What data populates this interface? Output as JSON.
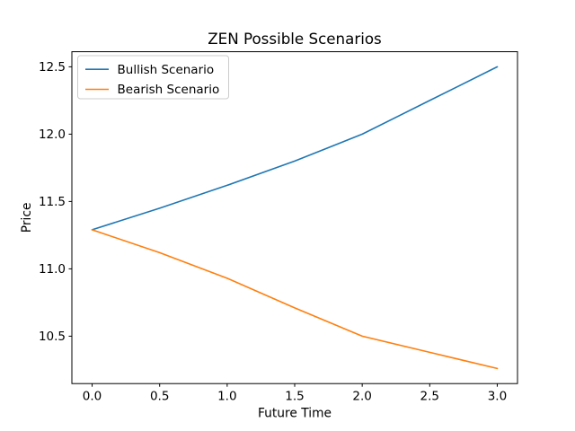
{
  "figure": {
    "background": "#ffffff",
    "text_color": "#000000",
    "spine_color": "#000000",
    "legend_border_color": "#cccccc"
  },
  "chart_data": {
    "type": "line",
    "title": "ZEN Possible Scenarios",
    "xlabel": "Future Time",
    "ylabel": "Price",
    "x": [
      0,
      0.5,
      1,
      1.5,
      2,
      2.5,
      3
    ],
    "series": [
      {
        "name": "Bullish Scenario",
        "color": "#1f77b4",
        "values": [
          11.29,
          11.45,
          11.62,
          11.8,
          12.0,
          12.25,
          12.5
        ]
      },
      {
        "name": "Bearish Scenario",
        "color": "#ff7f0e",
        "values": [
          11.29,
          11.12,
          10.93,
          10.71,
          10.5,
          10.38,
          10.26
        ]
      }
    ],
    "xticks": {
      "values": [
        0,
        0.5,
        1,
        1.5,
        2,
        2.5,
        3
      ],
      "labels": [
        "0.0",
        "0.5",
        "1.0",
        "1.5",
        "2.0",
        "2.5",
        "3.0"
      ]
    },
    "yticks": {
      "values": [
        10.5,
        11.0,
        11.5,
        12.0,
        12.5
      ],
      "labels": [
        "10.5",
        "11.0",
        "11.5",
        "12.0",
        "12.5"
      ]
    },
    "xlim": [
      -0.15,
      3.15
    ],
    "ylim": [
      10.148,
      12.612
    ],
    "grid": false,
    "legend": {
      "position": "upper-left",
      "entries": [
        "Bullish Scenario",
        "Bearish Scenario"
      ]
    }
  }
}
